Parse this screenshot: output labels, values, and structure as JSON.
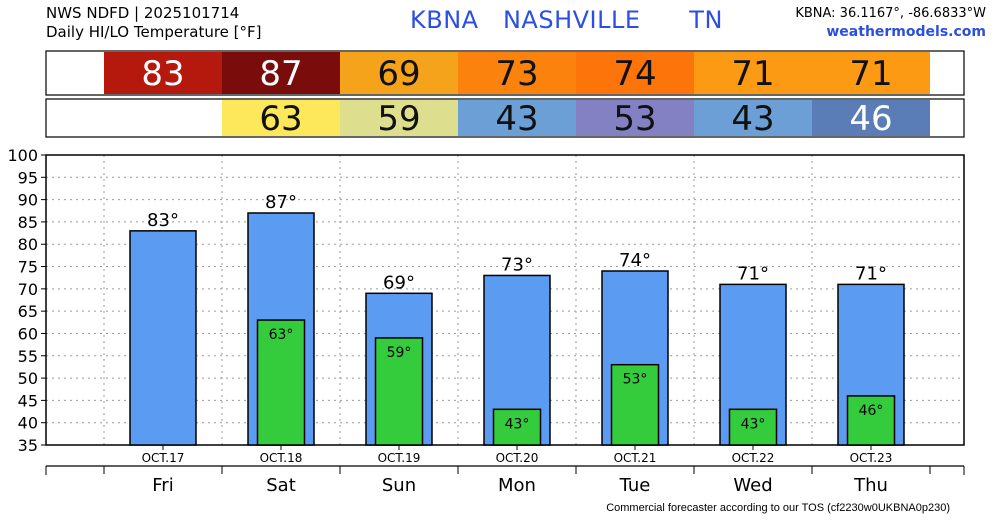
{
  "header": {
    "line1": "NWS NDFD | 2025101714",
    "line2": "Daily HI/LO Temperature [°F]",
    "station": "KBNA   NASHVILLE      TN",
    "coords": "KBNA: 36.1167°, -86.6833°W",
    "site": "weathermodels.com"
  },
  "footer": "Commercial forecaster according to our TOS (cf2230w0UKBNA0p230)",
  "chart_data": {
    "type": "bar",
    "categories": [
      "OCT.17",
      "OCT.18",
      "OCT.19",
      "OCT.20",
      "OCT.21",
      "OCT.22",
      "OCT.23"
    ],
    "days": [
      "Fri",
      "Sat",
      "Sun",
      "Mon",
      "Tue",
      "Wed",
      "Thu"
    ],
    "series": [
      {
        "name": "HI",
        "values": [
          83,
          87,
          69,
          73,
          74,
          71,
          71
        ],
        "color": "#5b9cf2"
      },
      {
        "name": "LO",
        "values": [
          null,
          63,
          59,
          43,
          53,
          43,
          46
        ],
        "color": "#34cc3c"
      }
    ],
    "hi_labels": [
      "83°",
      "87°",
      "69°",
      "73°",
      "74°",
      "71°",
      "71°"
    ],
    "lo_labels": [
      "",
      "63°",
      "59°",
      "43°",
      "53°",
      "43°",
      "46°"
    ],
    "hi_cells": [
      "83",
      "87",
      "69",
      "73",
      "74",
      "71",
      "71"
    ],
    "lo_cells": [
      "",
      "63",
      "59",
      "43",
      "53",
      "43",
      "46"
    ],
    "hi_colors": [
      "#b5190e",
      "#7a0c0c",
      "#f5a31a",
      "#fb820c",
      "#fc740a",
      "#fd9a14",
      "#fd9a14"
    ],
    "lo_colors": [
      "#ffffff",
      "#fde75a",
      "#dedf8e",
      "#6b9fd5",
      "#8480c4",
      "#6b9fd5",
      "#5a7db7"
    ],
    "yticks": [
      "100",
      "95",
      "90",
      "85",
      "80",
      "75",
      "70",
      "65",
      "60",
      "55",
      "50",
      "45",
      "40",
      "35"
    ],
    "ylim": [
      35,
      100
    ],
    "grid": true
  }
}
